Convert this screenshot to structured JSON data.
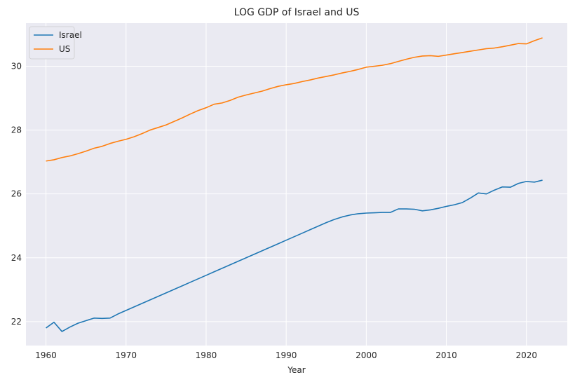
{
  "chart_data": {
    "type": "line",
    "title": "LOG GDP of Israel and US",
    "xlabel": "Year",
    "ylabel": "",
    "xlim": [
      1957.5,
      2025.1
    ],
    "ylim": [
      21.25,
      31.35
    ],
    "xticks": [
      1960,
      1970,
      1980,
      1990,
      2000,
      2010,
      2020
    ],
    "yticks": [
      22,
      24,
      26,
      28,
      30
    ],
    "grid": true,
    "legend_position": "top-left",
    "background_color": "#eaeaf2",
    "grid_color": "#ffffff",
    "x": [
      1960,
      1961,
      1962,
      1963,
      1964,
      1965,
      1966,
      1967,
      1968,
      1969,
      1970,
      1971,
      1972,
      1973,
      1974,
      1975,
      1976,
      1977,
      1978,
      1979,
      1980,
      1981,
      1982,
      1983,
      1984,
      1985,
      1986,
      1987,
      1988,
      1989,
      1990,
      1991,
      1992,
      1993,
      1994,
      1995,
      1996,
      1997,
      1998,
      1999,
      2000,
      2001,
      2002,
      2003,
      2004,
      2005,
      2006,
      2007,
      2008,
      2009,
      2010,
      2011,
      2012,
      2013,
      2014,
      2015,
      2016,
      2017,
      2018,
      2019,
      2020,
      2021,
      2022
    ],
    "series": [
      {
        "name": "Israel",
        "color": "#1f77b4",
        "values": [
          21.8,
          21.98,
          21.69,
          21.83,
          21.95,
          22.03,
          22.11,
          22.1,
          22.11,
          22.24,
          22.35,
          22.46,
          22.57,
          22.68,
          22.79,
          22.9,
          23.01,
          23.12,
          23.23,
          23.34,
          23.45,
          23.56,
          23.67,
          23.78,
          23.89,
          24.0,
          24.11,
          24.22,
          24.33,
          24.44,
          24.55,
          24.66,
          24.77,
          24.88,
          24.99,
          25.1,
          25.2,
          25.28,
          25.34,
          25.38,
          25.4,
          25.41,
          25.42,
          25.42,
          25.53,
          25.53,
          25.52,
          25.47,
          25.5,
          25.55,
          25.61,
          25.66,
          25.73,
          25.87,
          26.03,
          26.0,
          26.12,
          26.22,
          26.21,
          26.33,
          26.39,
          26.37,
          26.43
        ]
      },
      {
        "name": "US",
        "color": "#ff7f0e",
        "values": [
          27.03,
          27.07,
          27.14,
          27.19,
          27.26,
          27.34,
          27.43,
          27.49,
          27.58,
          27.65,
          27.71,
          27.79,
          27.89,
          28.0,
          28.08,
          28.16,
          28.27,
          28.38,
          28.5,
          28.61,
          28.7,
          28.81,
          28.85,
          28.93,
          29.03,
          29.1,
          29.16,
          29.22,
          29.3,
          29.37,
          29.42,
          29.46,
          29.52,
          29.57,
          29.63,
          29.68,
          29.73,
          29.79,
          29.84,
          29.9,
          29.97,
          30.0,
          30.03,
          30.08,
          30.15,
          30.22,
          30.28,
          30.32,
          30.33,
          30.31,
          30.35,
          30.39,
          30.43,
          30.47,
          30.51,
          30.55,
          30.57,
          30.61,
          30.66,
          30.71,
          30.7,
          30.8,
          30.89
        ]
      }
    ]
  }
}
